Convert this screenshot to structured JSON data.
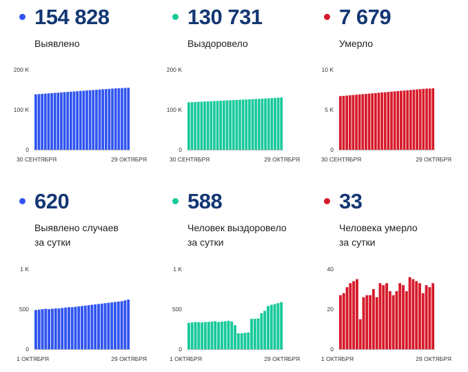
{
  "colors": {
    "blue": "#2f54f0",
    "green": "#18c99a",
    "red": "#d61a2a",
    "number": "#143773"
  },
  "stats": [
    {
      "value": "154 828",
      "label_lines": [
        "Выявлено"
      ],
      "color": "blue"
    },
    {
      "value": "130 731",
      "label_lines": [
        "Выздоровело"
      ],
      "color": "green"
    },
    {
      "value": "7 679",
      "label_lines": [
        "Умерло"
      ],
      "color": "red"
    },
    {
      "value": "620",
      "label_lines": [
        "Выявлено случаев",
        "за сутки"
      ],
      "color": "blue"
    },
    {
      "value": "588",
      "label_lines": [
        "Человек выздоровело",
        "за сутки"
      ],
      "color": "green"
    },
    {
      "value": "33",
      "label_lines": [
        "Человека умерло",
        "за сутки"
      ],
      "color": "red"
    }
  ],
  "chart_data": [
    {
      "type": "bar",
      "color": "blue",
      "ylim": [
        0,
        200000
      ],
      "yticks": [
        {
          "v": 0,
          "label": "0"
        },
        {
          "v": 100000,
          "label": "100 K"
        },
        {
          "v": 200000,
          "label": "200 K"
        }
      ],
      "x_start_label": "30 СЕНТЯБРЯ",
      "x_end_label": "29 ОКТЯБРЯ",
      "values": [
        138500,
        139100,
        139700,
        140300,
        140900,
        141500,
        142100,
        142700,
        143300,
        143900,
        144500,
        145100,
        145700,
        146300,
        146900,
        147500,
        148100,
        148700,
        149300,
        149900,
        150500,
        151100,
        151700,
        152300,
        152900,
        153400,
        153800,
        154100,
        154500,
        154828
      ]
    },
    {
      "type": "bar",
      "color": "green",
      "ylim": [
        0,
        200000
      ],
      "yticks": [
        {
          "v": 0,
          "label": "0"
        },
        {
          "v": 100000,
          "label": "100 K"
        },
        {
          "v": 200000,
          "label": "200 K"
        }
      ],
      "x_start_label": "30 СЕНТЯБРЯ",
      "x_end_label": "29 ОКТЯБРЯ",
      "values": [
        118500,
        118900,
        119300,
        119700,
        120100,
        120500,
        120900,
        121300,
        121700,
        122100,
        122500,
        122900,
        123300,
        123700,
        124100,
        124500,
        124900,
        125300,
        125700,
        126100,
        126500,
        126900,
        127300,
        127700,
        128100,
        128600,
        129100,
        129600,
        130143,
        130731
      ]
    },
    {
      "type": "bar",
      "color": "red",
      "ylim": [
        0,
        10000
      ],
      "yticks": [
        {
          "v": 0,
          "label": "0"
        },
        {
          "v": 5000,
          "label": "5 K"
        },
        {
          "v": 10000,
          "label": "10 K"
        }
      ],
      "x_start_label": "30 СЕНТЯБРЯ",
      "x_end_label": "29 ОКТЯБРЯ",
      "values": [
        6700,
        6735,
        6770,
        6805,
        6840,
        6875,
        6910,
        6945,
        6980,
        7015,
        7050,
        7085,
        7120,
        7155,
        7190,
        7225,
        7260,
        7295,
        7330,
        7365,
        7400,
        7435,
        7470,
        7505,
        7540,
        7575,
        7610,
        7640,
        7646,
        7679
      ]
    },
    {
      "type": "bar",
      "color": "blue",
      "ylim": [
        0,
        1000
      ],
      "yticks": [
        {
          "v": 0,
          "label": "0"
        },
        {
          "v": 500,
          "label": "500"
        },
        {
          "v": 1000,
          "label": "1 K"
        }
      ],
      "x_start_label": "1 ОКТЯБРЯ",
      "x_end_label": "29 ОКТЯБРЯ",
      "values": [
        490,
        495,
        500,
        505,
        500,
        505,
        510,
        510,
        515,
        520,
        525,
        525,
        530,
        535,
        540,
        545,
        550,
        555,
        560,
        565,
        570,
        575,
        580,
        585,
        590,
        595,
        600,
        610,
        620
      ]
    },
    {
      "type": "bar",
      "color": "green",
      "ylim": [
        0,
        1000
      ],
      "yticks": [
        {
          "v": 0,
          "label": "0"
        },
        {
          "v": 500,
          "label": "500"
        },
        {
          "v": 1000,
          "label": "1 K"
        }
      ],
      "x_start_label": "1 ОКТЯБРЯ",
      "x_end_label": "29 ОКТЯБРЯ",
      "values": [
        330,
        335,
        340,
        338,
        335,
        340,
        342,
        345,
        350,
        340,
        345,
        350,
        355,
        345,
        300,
        200,
        200,
        205,
        210,
        380,
        380,
        385,
        450,
        480,
        540,
        555,
        565,
        575,
        588
      ]
    },
    {
      "type": "bar",
      "color": "red",
      "ylim": [
        0,
        40
      ],
      "yticks": [
        {
          "v": 0,
          "label": "0"
        },
        {
          "v": 20,
          "label": "20"
        },
        {
          "v": 40,
          "label": "40"
        }
      ],
      "x_start_label": "1 ОКТЯБРЯ",
      "x_end_label": "29 ОКТЯБРЯ",
      "values": [
        27,
        28,
        31,
        33,
        34,
        35,
        15,
        26,
        27,
        27,
        30,
        26,
        33,
        32,
        33,
        29,
        27,
        29,
        33,
        32,
        29,
        36,
        35,
        34,
        33,
        28,
        32,
        31,
        33
      ]
    }
  ]
}
